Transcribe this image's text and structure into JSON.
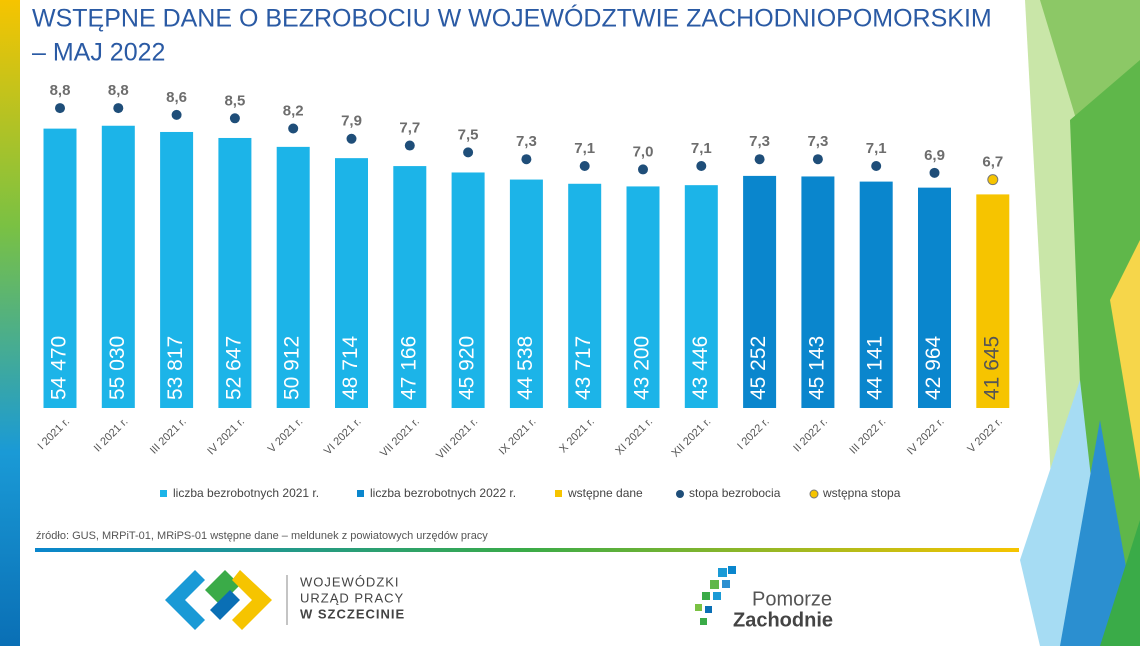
{
  "chart_data": {
    "type": "bar",
    "title": [
      "WSTĘPNE DANE O BEZROBOCIU W WOJEWÓDZTWIE ZACHODNIOPOMORSKIM",
      "– MAJ 2022"
    ],
    "categories": [
      "I 2021 r.",
      "II 2021 r.",
      "III 2021 r.",
      "IV 2021 r.",
      "V 2021 r.",
      "VI 2021 r.",
      "VII 2021 r.",
      "VIII 2021 r.",
      "IX 2021 r.",
      "X 2021 r.",
      "XI 2021 r.",
      "XII 2021 r.",
      "I 2022 r.",
      "II 2022 r.",
      "III 2022 r.",
      "IV 2022 r.",
      "V 2022 r."
    ],
    "ylim": [
      0,
      62000
    ],
    "y2lim": [
      0,
      9.33
    ],
    "series": [
      {
        "name": "liczba bezrobotnych 2021 r.",
        "type": "bar",
        "color": "#1cb4e8",
        "values": [
          54470,
          55030,
          53817,
          52647,
          50912,
          48714,
          47166,
          45920,
          44538,
          43717,
          43200,
          43446,
          null,
          null,
          null,
          null,
          null
        ],
        "value_labels": [
          "54 470",
          "55 030",
          "53 817",
          "52 647",
          "50 912",
          "48 714",
          "47 166",
          "45 920",
          "44 538",
          "43 717",
          "43 200",
          "43 446",
          null,
          null,
          null,
          null,
          null
        ]
      },
      {
        "name": "liczba bezrobotnych 2022 r.",
        "type": "bar",
        "color": "#0a86cd",
        "values": [
          null,
          null,
          null,
          null,
          null,
          null,
          null,
          null,
          null,
          null,
          null,
          null,
          45252,
          45143,
          44141,
          42964,
          null
        ],
        "value_labels": [
          null,
          null,
          null,
          null,
          null,
          null,
          null,
          null,
          null,
          null,
          null,
          null,
          "45 252",
          "45 143",
          "44 141",
          "42 964",
          null
        ]
      },
      {
        "name": "wstępne dane",
        "type": "bar",
        "color": "#f6c400",
        "values": [
          null,
          null,
          null,
          null,
          null,
          null,
          null,
          null,
          null,
          null,
          null,
          null,
          null,
          null,
          null,
          null,
          41645
        ],
        "value_labels": [
          null,
          null,
          null,
          null,
          null,
          null,
          null,
          null,
          null,
          null,
          null,
          null,
          null,
          null,
          null,
          null,
          "41 645"
        ]
      },
      {
        "name": "stopa bezrobocia",
        "type": "dot",
        "axis": "y2",
        "color": "#1f4e79",
        "values": [
          8.8,
          8.8,
          8.6,
          8.5,
          8.2,
          7.9,
          7.7,
          7.5,
          7.3,
          7.1,
          7.0,
          7.1,
          7.3,
          7.3,
          7.1,
          6.9,
          null
        ],
        "value_labels": [
          "8,8",
          "8,8",
          "8,6",
          "8,5",
          "8,2",
          "7,9",
          "7,7",
          "7,5",
          "7,3",
          "7,1",
          "7,0",
          "7,1",
          "7,3",
          "7,3",
          "7,1",
          "6,9",
          null
        ]
      },
      {
        "name": "wstępna stopa",
        "type": "dot",
        "axis": "y2",
        "color": "#f6c400",
        "values": [
          null,
          null,
          null,
          null,
          null,
          null,
          null,
          null,
          null,
          null,
          null,
          null,
          null,
          null,
          null,
          null,
          6.7
        ],
        "value_labels": [
          null,
          null,
          null,
          null,
          null,
          null,
          null,
          null,
          null,
          null,
          null,
          null,
          null,
          null,
          null,
          null,
          "6,7"
        ]
      }
    ],
    "source": "źródło: GUS, MRPiT-01, MRiPS-01 wstępne dane – meldunek z powiatowych urzędów pracy"
  },
  "logos": {
    "wup": [
      "WOJEWÓDZKI",
      "URZĄD PRACY",
      "W SZCZECINIE"
    ],
    "pz": [
      "Pomorze",
      "Zachodnie"
    ]
  }
}
